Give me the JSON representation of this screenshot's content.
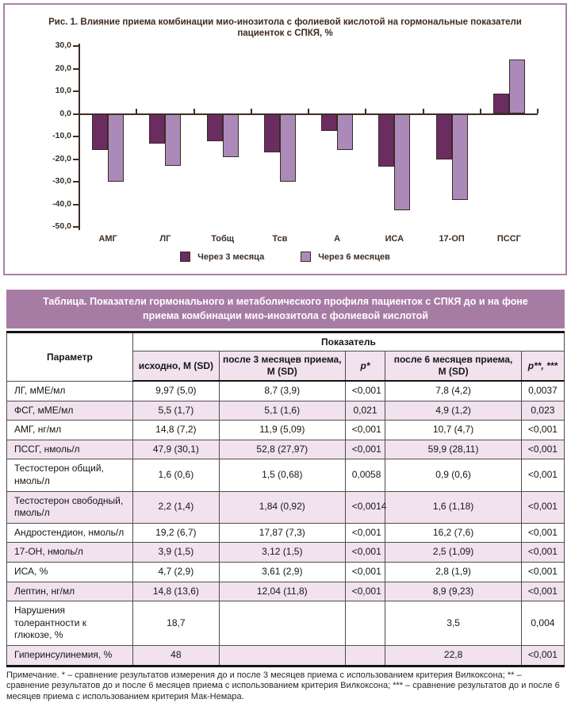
{
  "figure": {
    "title": "Рис. 1. Влияние приема комбинации мио-инозитола с фолиевой кислотой на гормональные показатели пациенток с СПКЯ, %"
  },
  "chart_data": {
    "type": "bar",
    "title": "Рис. 1. Влияние приема комбинации мио-инозитола с фолиевой кислотой на гормональные показатели пациенток с СПКЯ, %",
    "categories": [
      "АМГ",
      "ЛГ",
      "Тобщ",
      "Тсв",
      "А",
      "ИСА",
      "17-ОП",
      "ПССГ"
    ],
    "series": [
      {
        "name": "Через 3 месяца",
        "color": "#6b2c62",
        "values": [
          -16,
          -13,
          -12,
          -17,
          -7.5,
          -23.5,
          -20,
          9
        ]
      },
      {
        "name": "Через 6 месяцев",
        "color": "#ab8aba",
        "values": [
          -30,
          -23,
          -19,
          -30,
          -16,
          -42.5,
          -38,
          24
        ]
      }
    ],
    "xlabel": "",
    "ylabel": "",
    "ylim": [
      -50,
      30
    ],
    "ytick_step": 10,
    "ytick_labels": [
      "30,0",
      "20,0",
      "10,0",
      "0,0",
      "-10,0",
      "-20,0",
      "-30,0",
      "-40,0",
      "-50,0"
    ],
    "grid": false,
    "legend_position": "bottom"
  },
  "table": {
    "title": "Таблица. Показатели гормонального и метаболического профиля пациенток с СПКЯ до и на фоне приема комбинации мио-инозитола с фолиевой кислотой",
    "header": {
      "param": "Параметр",
      "group": "Показатель",
      "columns": [
        "исходно, M (SD)",
        "после 3 месяцев приема,\nМ (SD)",
        "p*",
        "после 6 месяцев приема,\nМ (SD)",
        "p**, ***"
      ]
    },
    "rows": [
      [
        "ЛГ, мМЕ/мл",
        "9,97 (5,0)",
        "8,7 (3,9)",
        "<0,001",
        "7,8 (4,2)",
        "0,0037"
      ],
      [
        "ФСГ, мМЕ/мл",
        "5,5 (1,7)",
        "5,1 (1,6)",
        "0,021",
        "4,9 (1,2)",
        "0,023"
      ],
      [
        "АМГ, нг/мл",
        "14,8 (7,2)",
        "11,9 (5,09)",
        "<0,001",
        "10,7 (4,7)",
        "<0,001"
      ],
      [
        "ПССГ, нмоль/л",
        "47,9 (30,1)",
        "52,8 (27,97)",
        "<0,001",
        "59,9 (28,11)",
        "<0,001"
      ],
      [
        "Тестостерон общий, нмоль/л",
        "1,6 (0,6)",
        "1,5 (0,68)",
        "0,0058",
        "0,9 (0,6)",
        "<0,001"
      ],
      [
        "Тестостерон свободный, пмоль/л",
        "2,2 (1,4)",
        "1,84 (0,92)",
        "<0,0014",
        "1,6 (1,18)",
        "<0,001"
      ],
      [
        "Андростендион, нмоль/л",
        "19,2 (6,7)",
        "17,87 (7,3)",
        "<0,001",
        "16,2 (7,6)",
        "<0,001"
      ],
      [
        "17-ОН, нмоль/л",
        "3,9 (1,5)",
        "3,12 (1,5)",
        "<0,001",
        "2,5 (1,09)",
        "<0,001"
      ],
      [
        "ИСА, %",
        "4,7 (2,9)",
        "3,61 (2,9)",
        "<0,001",
        "2,8 (1,9)",
        "<0,001"
      ],
      [
        "Лептин, нг/мл",
        "14,8 (13,6)",
        "12,04 (11,8)",
        "<0,001",
        "8,9 (9,23)",
        "<0,001"
      ],
      [
        "Нарушения толерантности к глюкозе, %",
        "18,7",
        "",
        "",
        "3,5",
        "0,004"
      ],
      [
        "Гиперинсулинемия, %",
        "48",
        "",
        "",
        "22,8",
        "<0,001"
      ]
    ]
  },
  "footnote": "Примечание. * – сравнение результатов измерения до и после 3 месяцев приема с использованием критерия Вилкоксона; ** – сравнение результатов до и после 6 месяцев приема с использованием критерия Вилкоксона; *** – сравнение результатов до и после 6 месяцев приема с использованием критерия Мак-Немара.",
  "colors": {
    "panel_border": "#aa80a7",
    "table_title_bg": "#a77ca4",
    "row_pink": "#f1e2ee",
    "bar_dark": "#6b2c62",
    "bar_light": "#ab8aba",
    "axis": "#3c2d24"
  }
}
